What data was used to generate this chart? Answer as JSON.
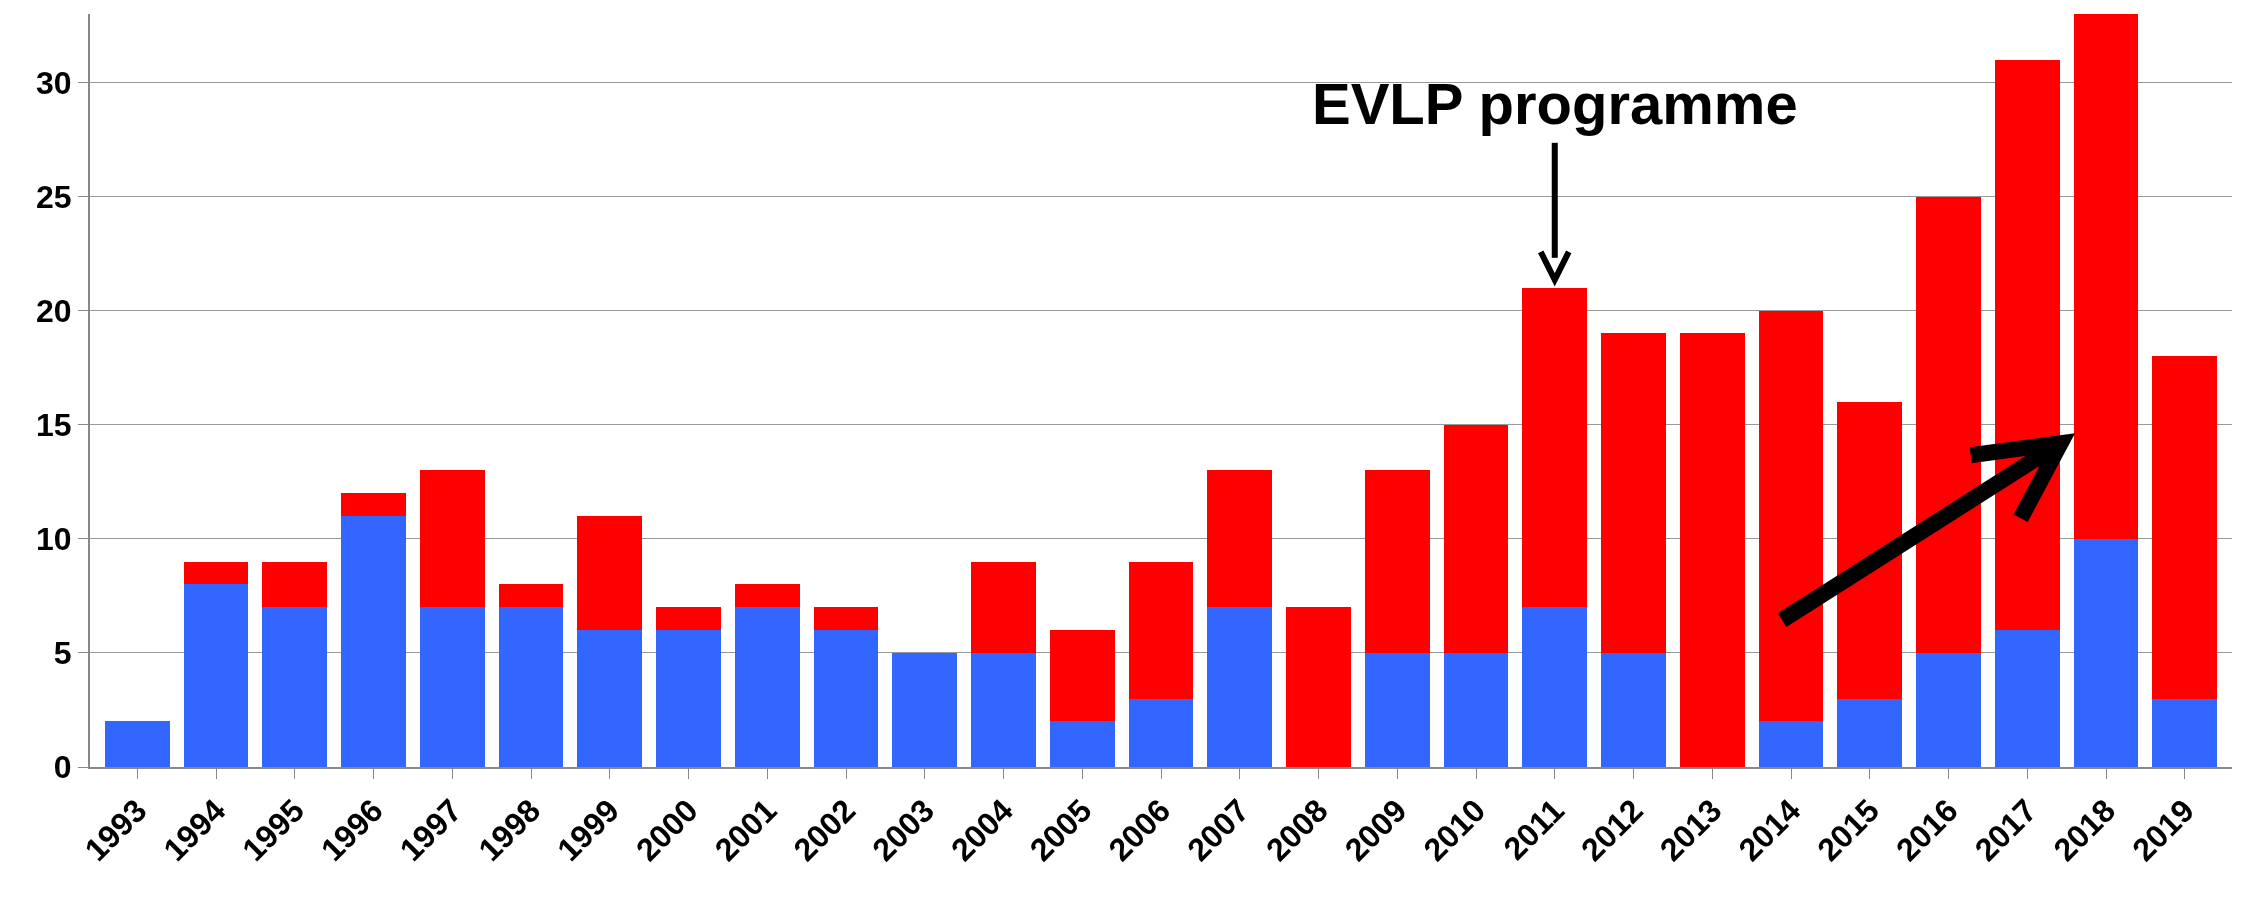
{
  "chart_data": {
    "type": "bar",
    "stacked": true,
    "categories": [
      "1993",
      "1994",
      "1995",
      "1996",
      "1997",
      "1998",
      "1999",
      "2000",
      "2001",
      "2002",
      "2003",
      "2004",
      "2005",
      "2006",
      "2007",
      "2008",
      "2009",
      "2010",
      "2011",
      "2012",
      "2013",
      "2014",
      "2015",
      "2016",
      "2017",
      "2018",
      "2019"
    ],
    "series": [
      {
        "color": "#3366ff",
        "values": [
          2,
          8,
          7,
          11,
          7,
          7,
          6,
          6,
          7,
          6,
          5,
          5,
          2,
          3,
          7,
          0,
          5,
          5,
          7,
          5,
          0,
          2,
          3,
          5,
          6,
          10,
          3
        ]
      },
      {
        "color": "#ff0000",
        "values": [
          0,
          1,
          2,
          1,
          6,
          1,
          5,
          1,
          1,
          1,
          0,
          4,
          4,
          6,
          6,
          7,
          8,
          10,
          14,
          14,
          19,
          18,
          13,
          20,
          25,
          23,
          15
        ]
      }
    ],
    "ylim": [
      0,
      33
    ],
    "yticks": [
      0,
      5,
      10,
      15,
      20,
      25,
      30
    ],
    "grid": "y",
    "annotations": [
      {
        "text": "EVLP programme",
        "x": "2011",
        "y": 21
      }
    ]
  }
}
